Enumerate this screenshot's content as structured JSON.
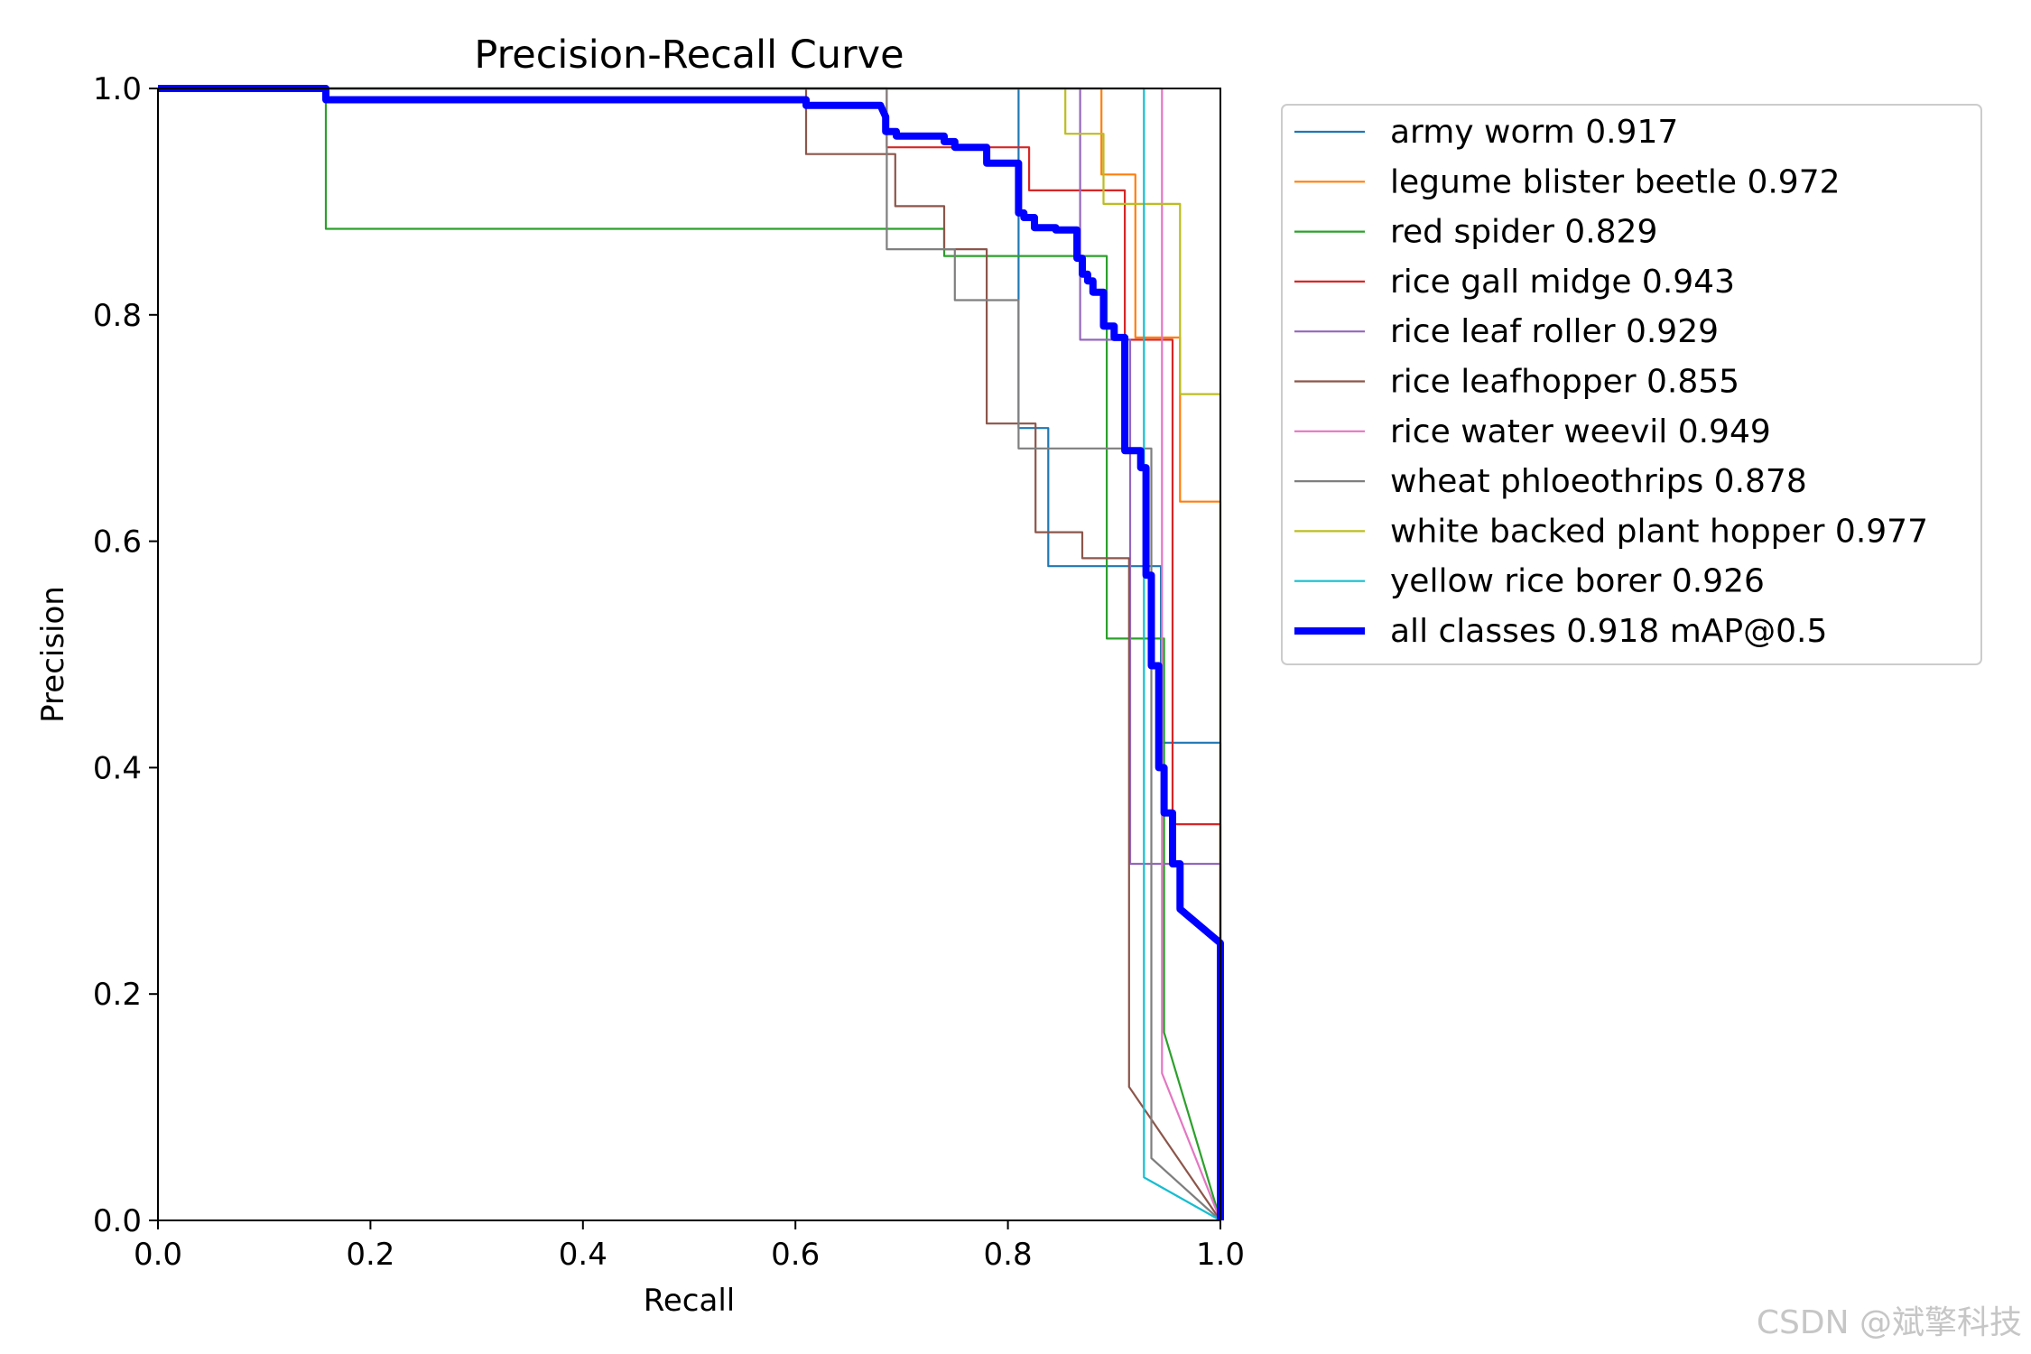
{
  "chart_data": {
    "type": "line",
    "title": "Precision-Recall Curve",
    "xlabel": "Recall",
    "ylabel": "Precision",
    "xlim": [
      0.0,
      1.0
    ],
    "ylim": [
      0.0,
      1.0
    ],
    "xticks": [
      "0.0",
      "0.2",
      "0.4",
      "0.6",
      "0.8",
      "1.0"
    ],
    "yticks": [
      "0.0",
      "0.2",
      "0.4",
      "0.6",
      "0.8",
      "1.0"
    ],
    "grid": false,
    "legend_position": "outside-right-top",
    "series": [
      {
        "name": "army worm",
        "ap": "0.917",
        "label": "army worm 0.917",
        "color": "#1f77b4",
        "x": [
          0,
          0.81,
          0.81,
          0.838,
          0.838,
          0.944,
          0.944,
          1.0,
          1.0
        ],
        "y": [
          1,
          1,
          0.7,
          0.7,
          0.578,
          0.578,
          0.422,
          0.422,
          0
        ]
      },
      {
        "name": "legume blister beetle",
        "ap": "0.972",
        "label": "legume blister beetle 0.972",
        "color": "#ff7f0e",
        "x": [
          0,
          0.888,
          0.888,
          0.92,
          0.92,
          0.962,
          0.962,
          1.0,
          1.0
        ],
        "y": [
          1,
          1,
          0.924,
          0.924,
          0.78,
          0.78,
          0.635,
          0.635,
          0
        ]
      },
      {
        "name": "red spider",
        "ap": "0.829",
        "label": "red spider 0.829",
        "color": "#2ca02c",
        "x": [
          0,
          0.158,
          0.158,
          0.74,
          0.74,
          0.893,
          0.893,
          0.947,
          0.947,
          1.0
        ],
        "y": [
          1,
          1,
          0.876,
          0.876,
          0.852,
          0.852,
          0.514,
          0.514,
          0.166,
          0
        ]
      },
      {
        "name": "rice gall midge",
        "ap": "0.943",
        "label": "rice gall midge 0.943",
        "color": "#d62728",
        "x": [
          0,
          0.686,
          0.686,
          0.82,
          0.82,
          0.91,
          0.91,
          0.955,
          0.955,
          1.0,
          1.0
        ],
        "y": [
          1,
          1,
          0.948,
          0.948,
          0.91,
          0.91,
          0.778,
          0.778,
          0.35,
          0.35,
          0
        ]
      },
      {
        "name": "rice leaf roller",
        "ap": "0.929",
        "label": "rice leaf roller 0.929",
        "color": "#9467bd",
        "x": [
          0,
          0.868,
          0.868,
          0.915,
          0.915,
          1.0,
          1.0
        ],
        "y": [
          1,
          1,
          0.778,
          0.778,
          0.315,
          0.315,
          0
        ]
      },
      {
        "name": "rice leafhopper",
        "ap": "0.855",
        "label": "rice leafhopper 0.855",
        "color": "#8c564b",
        "x": [
          0,
          0.61,
          0.61,
          0.694,
          0.694,
          0.74,
          0.74,
          0.78,
          0.78,
          0.826,
          0.826,
          0.87,
          0.87,
          0.914,
          0.914,
          1.0
        ],
        "y": [
          1,
          1,
          0.942,
          0.942,
          0.896,
          0.896,
          0.858,
          0.858,
          0.704,
          0.704,
          0.608,
          0.608,
          0.585,
          0.585,
          0.118,
          0
        ]
      },
      {
        "name": "rice water weevil",
        "ap": "0.949",
        "label": "rice water weevil 0.949",
        "color": "#e377c2",
        "x": [
          0,
          0.945,
          0.945,
          1.0
        ],
        "y": [
          1,
          1,
          0.13,
          0
        ]
      },
      {
        "name": "wheat phloeothrips",
        "ap": "0.878",
        "label": "wheat phloeothrips 0.878",
        "color": "#7f7f7f",
        "x": [
          0,
          0.686,
          0.686,
          0.75,
          0.75,
          0.81,
          0.81,
          0.935,
          0.935,
          1.0
        ],
        "y": [
          1,
          1,
          0.858,
          0.858,
          0.813,
          0.813,
          0.682,
          0.682,
          0.055,
          0
        ]
      },
      {
        "name": "white backed plant hopper",
        "ap": "0.977",
        "label": "white backed plant hopper 0.977",
        "color": "#bcbd22",
        "x": [
          0,
          0.854,
          0.854,
          0.89,
          0.89,
          0.962,
          0.962,
          1.0,
          1.0
        ],
        "y": [
          1,
          1,
          0.96,
          0.96,
          0.898,
          0.898,
          0.73,
          0.73,
          0
        ]
      },
      {
        "name": "yellow rice borer",
        "ap": "0.926",
        "label": "yellow rice borer 0.926",
        "color": "#17becf",
        "x": [
          0,
          0.928,
          0.928,
          1.0
        ],
        "y": [
          1,
          1,
          0.038,
          0
        ]
      },
      {
        "name": "all classes",
        "ap": "0.918",
        "label": "all classes 0.918 mAP@0.5",
        "color": "#0000ff",
        "bold": true,
        "x": [
          0,
          0.158,
          0.158,
          0.61,
          0.61,
          0.68,
          0.685,
          0.685,
          0.695,
          0.695,
          0.74,
          0.74,
          0.75,
          0.75,
          0.78,
          0.78,
          0.81,
          0.81,
          0.815,
          0.815,
          0.825,
          0.825,
          0.845,
          0.845,
          0.865,
          0.865,
          0.87,
          0.87,
          0.875,
          0.875,
          0.88,
          0.88,
          0.89,
          0.89,
          0.9,
          0.9,
          0.91,
          0.91,
          0.925,
          0.925,
          0.93,
          0.93,
          0.935,
          0.935,
          0.942,
          0.942,
          0.947,
          0.947,
          0.955,
          0.955,
          0.962,
          0.962,
          1.0,
          1.0
        ],
        "y": [
          1,
          1,
          0.99,
          0.99,
          0.985,
          0.985,
          0.975,
          0.962,
          0.962,
          0.958,
          0.958,
          0.953,
          0.953,
          0.948,
          0.948,
          0.934,
          0.934,
          0.89,
          0.89,
          0.886,
          0.886,
          0.877,
          0.877,
          0.875,
          0.875,
          0.85,
          0.85,
          0.836,
          0.836,
          0.83,
          0.83,
          0.82,
          0.82,
          0.79,
          0.79,
          0.78,
          0.78,
          0.68,
          0.68,
          0.665,
          0.665,
          0.57,
          0.57,
          0.49,
          0.49,
          0.4,
          0.4,
          0.36,
          0.36,
          0.315,
          0.315,
          0.275,
          0.245,
          0
        ]
      }
    ]
  },
  "watermark": "CSDN @斌擎科技"
}
